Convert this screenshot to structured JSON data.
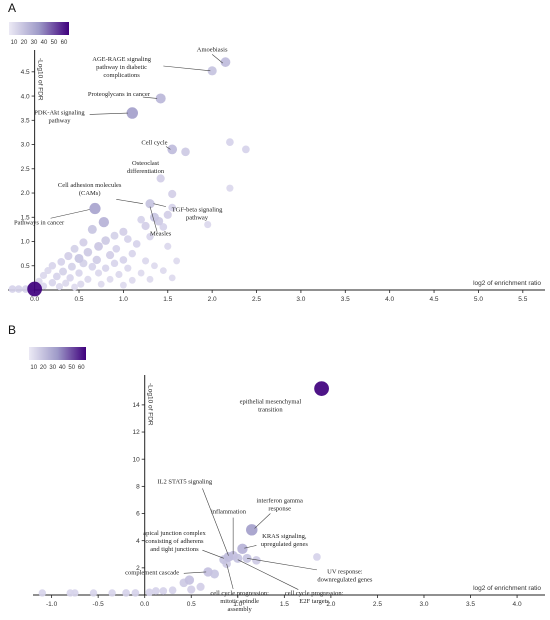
{
  "chart_data": [
    {
      "panel": "A",
      "type": "scatter",
      "xlabel": "log2 of enrichment ratio",
      "ylabel": "-Log10 of FDR",
      "xlim": [
        -0.3,
        5.75
      ],
      "ylim": [
        0,
        4.95
      ],
      "xticks": [
        "0.0",
        "0.5",
        "1.0",
        "1.5",
        "2.0",
        "2.5",
        "3.0",
        "3.5",
        "4.0",
        "4.5",
        "5.0",
        "5.5"
      ],
      "yticks": [
        "0.5",
        "1.0",
        "1.5",
        "2.0",
        "2.5",
        "3.0",
        "3.5",
        "4.0",
        "4.5"
      ],
      "legend": {
        "ticks": [
          "10",
          "20",
          "30",
          "40",
          "50",
          "60"
        ],
        "position": "top-left"
      },
      "points": [
        {
          "x": 2.15,
          "y": 4.7,
          "size": 18
        },
        {
          "x": 2.0,
          "y": 4.52,
          "size": 15
        },
        {
          "x": 1.42,
          "y": 3.95,
          "size": 20
        },
        {
          "x": 1.1,
          "y": 3.65,
          "size": 30
        },
        {
          "x": 1.55,
          "y": 2.9,
          "size": 18
        },
        {
          "x": 1.7,
          "y": 2.85,
          "size": 12
        },
        {
          "x": 2.2,
          "y": 3.05,
          "size": 8
        },
        {
          "x": 2.38,
          "y": 2.9,
          "size": 8
        },
        {
          "x": 1.42,
          "y": 2.3,
          "size": 10
        },
        {
          "x": 2.2,
          "y": 2.1,
          "size": 6
        },
        {
          "x": 1.55,
          "y": 1.98,
          "size": 10
        },
        {
          "x": 1.3,
          "y": 1.78,
          "size": 15
        },
        {
          "x": 1.55,
          "y": 1.7,
          "size": 8
        },
        {
          "x": 0.68,
          "y": 1.68,
          "size": 28
        },
        {
          "x": 1.35,
          "y": 1.5,
          "size": 14
        },
        {
          "x": 1.4,
          "y": 1.42,
          "size": 12
        },
        {
          "x": 1.5,
          "y": 1.55,
          "size": 10
        },
        {
          "x": 0.78,
          "y": 1.4,
          "size": 22
        },
        {
          "x": 1.2,
          "y": 1.45,
          "size": 8
        },
        {
          "x": 1.25,
          "y": 1.32,
          "size": 10
        },
        {
          "x": 1.45,
          "y": 1.3,
          "size": 8
        },
        {
          "x": 1.95,
          "y": 1.35,
          "size": 6
        },
        {
          "x": 0.65,
          "y": 1.25,
          "size": 14
        },
        {
          "x": 1.0,
          "y": 1.2,
          "size": 10
        },
        {
          "x": 0.9,
          "y": 1.12,
          "size": 9
        },
        {
          "x": 1.05,
          "y": 1.05,
          "size": 8
        },
        {
          "x": 0.8,
          "y": 1.02,
          "size": 12
        },
        {
          "x": 1.3,
          "y": 1.1,
          "size": 7
        },
        {
          "x": 0.55,
          "y": 0.98,
          "size": 10
        },
        {
          "x": 0.72,
          "y": 0.9,
          "size": 13
        },
        {
          "x": 1.15,
          "y": 0.95,
          "size": 8
        },
        {
          "x": 0.45,
          "y": 0.85,
          "size": 9
        },
        {
          "x": 0.92,
          "y": 0.85,
          "size": 8
        },
        {
          "x": 1.5,
          "y": 0.9,
          "size": 6
        },
        {
          "x": 0.6,
          "y": 0.78,
          "size": 12
        },
        {
          "x": 0.85,
          "y": 0.72,
          "size": 10
        },
        {
          "x": 1.1,
          "y": 0.75,
          "size": 7
        },
        {
          "x": 0.38,
          "y": 0.7,
          "size": 10
        },
        {
          "x": 0.5,
          "y": 0.65,
          "size": 14
        },
        {
          "x": 0.7,
          "y": 0.62,
          "size": 11
        },
        {
          "x": 1.0,
          "y": 0.62,
          "size": 8
        },
        {
          "x": 1.25,
          "y": 0.6,
          "size": 6
        },
        {
          "x": 0.3,
          "y": 0.58,
          "size": 8
        },
        {
          "x": 0.55,
          "y": 0.55,
          "size": 9
        },
        {
          "x": 0.9,
          "y": 0.55,
          "size": 7
        },
        {
          "x": 0.2,
          "y": 0.5,
          "size": 7
        },
        {
          "x": 0.42,
          "y": 0.48,
          "size": 9
        },
        {
          "x": 0.65,
          "y": 0.48,
          "size": 8
        },
        {
          "x": 1.6,
          "y": 0.6,
          "size": 5
        },
        {
          "x": 0.8,
          "y": 0.45,
          "size": 7
        },
        {
          "x": 1.05,
          "y": 0.45,
          "size": 6
        },
        {
          "x": 1.35,
          "y": 0.5,
          "size": 5
        },
        {
          "x": 0.15,
          "y": 0.4,
          "size": 6
        },
        {
          "x": 0.32,
          "y": 0.38,
          "size": 9
        },
        {
          "x": 0.5,
          "y": 0.35,
          "size": 7
        },
        {
          "x": 0.72,
          "y": 0.35,
          "size": 6
        },
        {
          "x": 0.95,
          "y": 0.32,
          "size": 6
        },
        {
          "x": 1.2,
          "y": 0.35,
          "size": 5
        },
        {
          "x": 1.45,
          "y": 0.4,
          "size": 5
        },
        {
          "x": 0.1,
          "y": 0.3,
          "size": 6
        },
        {
          "x": 0.25,
          "y": 0.28,
          "size": 8
        },
        {
          "x": 0.4,
          "y": 0.25,
          "size": 7
        },
        {
          "x": 0.6,
          "y": 0.22,
          "size": 6
        },
        {
          "x": 0.85,
          "y": 0.22,
          "size": 5
        },
        {
          "x": 1.1,
          "y": 0.2,
          "size": 5
        },
        {
          "x": 1.3,
          "y": 0.22,
          "size": 5
        },
        {
          "x": 1.55,
          "y": 0.25,
          "size": 5
        },
        {
          "x": 0.05,
          "y": 0.18,
          "size": 6
        },
        {
          "x": 0.2,
          "y": 0.15,
          "size": 7
        },
        {
          "x": 0.35,
          "y": 0.14,
          "size": 6
        },
        {
          "x": 0.52,
          "y": 0.12,
          "size": 6
        },
        {
          "x": 0.75,
          "y": 0.12,
          "size": 5
        },
        {
          "x": 1.0,
          "y": 0.1,
          "size": 5
        },
        {
          "x": 0.1,
          "y": 0.08,
          "size": 6
        },
        {
          "x": 0.28,
          "y": 0.07,
          "size": 6
        },
        {
          "x": 0.45,
          "y": 0.06,
          "size": 5
        },
        {
          "x": -0.25,
          "y": 0.02,
          "size": 8
        },
        {
          "x": -0.18,
          "y": 0.02,
          "size": 8
        },
        {
          "x": -0.1,
          "y": 0.02,
          "size": 8
        },
        {
          "x": -0.05,
          "y": 0.03,
          "size": 8
        },
        {
          "x": 0.0,
          "y": 0.02,
          "size": 60
        }
      ],
      "annotations": [
        {
          "lines": [
            "Amoebiasis"
          ],
          "x": 2.0,
          "y": 4.92,
          "anchor": "middle"
        },
        {
          "lines": [
            "AGE-RAGE signaling",
            "pathway in diabetic",
            "complications"
          ],
          "x": 0.98,
          "y": 4.72,
          "anchor": "middle"
        },
        {
          "lines": [
            "Proteoglycans in cancer"
          ],
          "x": 0.95,
          "y": 4.0,
          "anchor": "middle"
        },
        {
          "lines": [
            "PDK-Akt signaling",
            "pathway"
          ],
          "x": 0.28,
          "y": 3.62,
          "anchor": "middle"
        },
        {
          "lines": [
            "Cell cycle"
          ],
          "x": 1.35,
          "y": 3.0,
          "anchor": "middle"
        },
        {
          "lines": [
            "Osteoclast",
            "differentiation"
          ],
          "x": 1.25,
          "y": 2.58,
          "anchor": "middle"
        },
        {
          "lines": [
            "Cell adhesion molecules",
            "(CAMs)"
          ],
          "x": 0.62,
          "y": 2.12,
          "anchor": "middle"
        },
        {
          "lines": [
            "Pathways in cancer"
          ],
          "x": 0.05,
          "y": 1.35,
          "anchor": "middle"
        },
        {
          "lines": [
            "TGF-beta signaling",
            "pathway"
          ],
          "x": 1.83,
          "y": 1.62,
          "anchor": "middle"
        },
        {
          "lines": [
            "Measles"
          ],
          "x": 1.42,
          "y": 1.12,
          "anchor": "middle"
        }
      ],
      "leaders": [
        [
          2.0,
          4.86,
          2.12,
          4.68
        ],
        [
          1.45,
          4.62,
          1.98,
          4.52
        ],
        [
          1.22,
          3.98,
          1.38,
          3.95
        ],
        [
          0.62,
          3.62,
          1.05,
          3.65
        ],
        [
          1.48,
          2.96,
          1.53,
          2.9
        ],
        [
          0.92,
          1.87,
          1.22,
          1.78
        ],
        [
          0.18,
          1.48,
          0.62,
          1.66
        ],
        [
          1.48,
          1.72,
          1.34,
          1.78
        ],
        [
          1.38,
          1.2,
          1.3,
          1.72
        ]
      ]
    },
    {
      "panel": "B",
      "type": "scatter",
      "xlabel": "log2 of enrichment ratio",
      "ylabel": "-Log10 of FDR",
      "xlim": [
        -1.2,
        4.3
      ],
      "ylim": [
        0,
        16.2
      ],
      "xticks": [
        "-1.0",
        "-0.5",
        "0.0",
        "0.5",
        "1.0",
        "1.5",
        "2.0",
        "2.5",
        "3.0",
        "3.5",
        "4.0"
      ],
      "yticks": [
        "2",
        "4",
        "6",
        "8",
        "10",
        "12",
        "14"
      ],
      "legend": {
        "ticks": [
          "10",
          "20",
          "30",
          "40",
          "50",
          "60"
        ],
        "position": "top-left"
      },
      "points": [
        {
          "x": 1.9,
          "y": 15.2,
          "size": 60
        },
        {
          "x": 1.85,
          "y": 2.8,
          "size": 8
        },
        {
          "x": 1.15,
          "y": 4.8,
          "size": 30
        },
        {
          "x": 1.05,
          "y": 3.4,
          "size": 22
        },
        {
          "x": 0.9,
          "y": 2.8,
          "size": 18
        },
        {
          "x": 0.95,
          "y": 2.9,
          "size": 16
        },
        {
          "x": 0.85,
          "y": 2.6,
          "size": 15
        },
        {
          "x": 1.0,
          "y": 2.7,
          "size": 15
        },
        {
          "x": 1.1,
          "y": 2.7,
          "size": 14
        },
        {
          "x": 1.2,
          "y": 2.55,
          "size": 12
        },
        {
          "x": 0.88,
          "y": 2.3,
          "size": 12
        },
        {
          "x": 0.68,
          "y": 1.7,
          "size": 16
        },
        {
          "x": 0.75,
          "y": 1.55,
          "size": 14
        },
        {
          "x": 0.48,
          "y": 1.1,
          "size": 16
        },
        {
          "x": 0.42,
          "y": 0.9,
          "size": 12
        },
        {
          "x": 0.6,
          "y": 0.6,
          "size": 10
        },
        {
          "x": 0.5,
          "y": 0.4,
          "size": 10
        },
        {
          "x": 0.3,
          "y": 0.35,
          "size": 8
        },
        {
          "x": 0.2,
          "y": 0.3,
          "size": 8
        },
        {
          "x": 0.12,
          "y": 0.3,
          "size": 8
        },
        {
          "x": 0.05,
          "y": 0.2,
          "size": 8
        },
        {
          "x": -0.1,
          "y": 0.15,
          "size": 8
        },
        {
          "x": -0.2,
          "y": 0.15,
          "size": 8
        },
        {
          "x": -0.35,
          "y": 0.15,
          "size": 7
        },
        {
          "x": -0.55,
          "y": 0.15,
          "size": 7
        },
        {
          "x": -0.75,
          "y": 0.15,
          "size": 7
        },
        {
          "x": -0.8,
          "y": 0.15,
          "size": 7
        },
        {
          "x": -1.1,
          "y": 0.15,
          "size": 7
        }
      ],
      "annotations": [
        {
          "lines": [
            "epithelial mesenchymal",
            "transition"
          ],
          "x": 1.35,
          "y": 14.1,
          "anchor": "middle"
        },
        {
          "lines": [
            "IL2 STAT5 signaling"
          ],
          "x": 0.43,
          "y": 8.2,
          "anchor": "middle"
        },
        {
          "lines": [
            "inflammation"
          ],
          "x": 0.9,
          "y": 6.0,
          "anchor": "middle"
        },
        {
          "lines": [
            "interferon gamma",
            "response"
          ],
          "x": 1.45,
          "y": 6.8,
          "anchor": "middle"
        },
        {
          "lines": [
            "apical junction complex",
            "consisting of adherens",
            "and tight junctions"
          ],
          "x": 0.32,
          "y": 4.4,
          "anchor": "middle"
        },
        {
          "lines": [
            "KRAS signaling,",
            "upregulated genes"
          ],
          "x": 1.5,
          "y": 4.2,
          "anchor": "middle"
        },
        {
          "lines": [
            "complement cascade"
          ],
          "x": 0.08,
          "y": 1.5,
          "anchor": "middle"
        },
        {
          "lines": [
            "UV response:",
            "downregulated genes"
          ],
          "x": 2.15,
          "y": 1.6,
          "anchor": "middle"
        },
        {
          "lines": [
            "cell cycle progression:",
            "mitotic spindle",
            "assembly"
          ],
          "x": 1.02,
          "y": 0.0,
          "anchor": "middle"
        },
        {
          "lines": [
            "cell cycle progression:",
            "E2F targets"
          ],
          "x": 1.82,
          "y": 0.0,
          "anchor": "middle"
        }
      ],
      "leaders": [
        [
          0.62,
          7.85,
          0.9,
          2.9
        ],
        [
          0.95,
          5.7,
          0.95,
          3.0
        ],
        [
          1.35,
          6.0,
          1.18,
          4.9
        ],
        [
          0.62,
          3.3,
          0.85,
          2.7
        ],
        [
          1.2,
          3.65,
          1.07,
          3.45
        ],
        [
          0.42,
          1.6,
          0.66,
          1.7
        ],
        [
          1.85,
          1.85,
          1.1,
          2.7
        ],
        [
          0.95,
          0.45,
          0.88,
          2.3
        ],
        [
          1.65,
          0.4,
          1.0,
          2.6
        ]
      ]
    }
  ]
}
